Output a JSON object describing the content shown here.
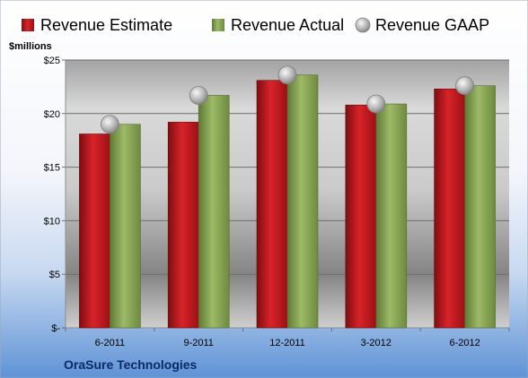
{
  "chart_data": {
    "type": "bar",
    "title": "",
    "company": "OraSure Technologies",
    "ylabel": "$millions",
    "xlabel": "",
    "categories": [
      "6-2011",
      "9-2011",
      "12-2011",
      "3-2012",
      "6-2012"
    ],
    "ylim": [
      0,
      25
    ],
    "yticks": [
      {
        "value": 0,
        "label": "$-"
      },
      {
        "value": 5,
        "label": "$5"
      },
      {
        "value": 10,
        "label": "$10"
      },
      {
        "value": 15,
        "label": "$15"
      },
      {
        "value": 20,
        "label": "$20"
      },
      {
        "value": 25,
        "label": "$25"
      }
    ],
    "grid": true,
    "legend_position": "top",
    "series": [
      {
        "name": "Revenue Estimate",
        "kind": "bar",
        "color": "#c8161d",
        "values": [
          18.1,
          19.2,
          23.1,
          20.8,
          22.3
        ]
      },
      {
        "name": "Revenue Actual",
        "kind": "bar",
        "color": "#8aa85a",
        "values": [
          19.0,
          21.7,
          23.6,
          20.9,
          22.6
        ]
      },
      {
        "name": "Revenue GAAP",
        "kind": "marker",
        "color": "#b4b4b4",
        "values": [
          19.0,
          21.7,
          23.6,
          20.9,
          22.6
        ]
      }
    ]
  }
}
